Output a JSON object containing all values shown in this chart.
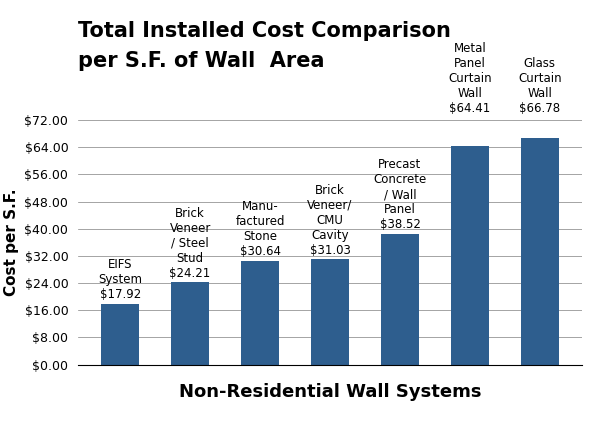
{
  "title_line1": "Total Installed Cost Comparison",
  "title_line2": "per S.F. of Wall  Area",
  "xlabel": "Non-Residential Wall Systems",
  "ylabel": "Cost per S.F.",
  "values": [
    17.92,
    24.21,
    30.64,
    31.03,
    38.52,
    64.41,
    66.78
  ],
  "bar_color": "#2E5E8E",
  "ylim": [
    0,
    72
  ],
  "yticks": [
    0,
    8,
    16,
    24,
    32,
    40,
    48,
    56,
    64,
    72
  ],
  "ytick_labels": [
    "$0.00",
    "$8.00",
    "$16.00",
    "$24.00",
    "$32.00",
    "$40.00",
    "$48.00",
    "$56.00",
    "$64.00",
    "$72.00"
  ],
  "background_color": "#ffffff",
  "title_fontsize": 15,
  "xlabel_fontsize": 13,
  "ylabel_fontsize": 11,
  "bar_label_fontsize": 8.5,
  "above_bar_labels": [
    "EIFS\nSystem\n$17.92",
    "Brick\nVeneer\n/ Steel\nStud\n$24.21",
    "Manu-\nfactured\nStone\n$30.64",
    "Brick\nVeneer/\nCMU\nCavity\n$31.03",
    "Precast\nConcrete\n/ Wall\nPanel\n$38.52",
    "Metal\nPanel\nCurtain\nWall\n$64.41",
    "Glass\nCurtain\nWall\n$66.78"
  ],
  "labels_above_plot": [
    false,
    false,
    false,
    false,
    false,
    true,
    true
  ]
}
